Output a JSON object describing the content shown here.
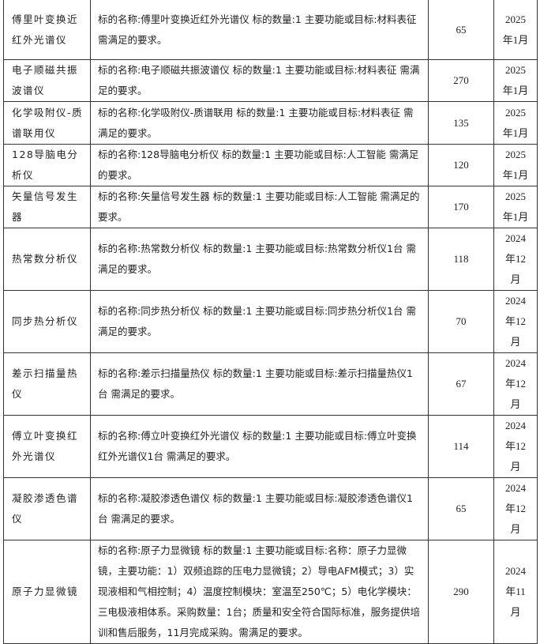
{
  "rows": [
    {
      "name": "傅里叶变换近红外光谱仪",
      "desc": "标的名称:傅里叶变换近红外光谱仪 标的数量:1 主要功能或目标:材料表征 需满足的要求。",
      "qty": "65",
      "date": "2025年1月"
    },
    {
      "name": "电子顺磁共振波谱仪",
      "desc": "标的名称:电子顺磁共振波谱仪 标的数量:1 主要功能或目标:材料表征 需满足的要求。",
      "qty": "270",
      "date": "2025年1月"
    },
    {
      "name": "化学吸附仪-质谱联用仪",
      "desc": "标的名称:化学吸附仪-质谱联用 标的数量:1 主要功能或目标:材料表征 需满足的要求。",
      "qty": "135",
      "date": "2025年1月"
    },
    {
      "name": "128导脑电分析仪",
      "desc": "标的名称:128导脑电分析仪 标的数量:1 主要功能或目标:人工智能 需满足的要求。",
      "qty": "120",
      "date": "2025年1月"
    },
    {
      "name": "矢量信号发生器",
      "desc": "标的名称:矢量信号发生器 标的数量:1 主要功能或目标:人工智能 需满足的要求。",
      "qty": "170",
      "date": "2025年1月"
    },
    {
      "name": "热常数分析仪",
      "desc": "标的名称:热常数分析仪 标的数量:1 主要功能或目标:热常数分析仪1台 需满足的要求。",
      "qty": "118",
      "date": "2024年12月"
    },
    {
      "name": "同步热分析仪",
      "desc": "标的名称:同步热分析仪 标的数量:1 主要功能或目标:同步热分析仪1台 需满足的要求。",
      "qty": "70",
      "date": "2024年12月"
    },
    {
      "name": "差示扫描量热仪",
      "desc": "标的名称:差示扫描量热仪 标的数量:1 主要功能或目标:差示扫描量热仪1台 需满足的要求。",
      "qty": "67",
      "date": "2024年12月"
    },
    {
      "name": "傅立叶变换红外光谱仪",
      "desc": "标的名称:傅立叶变换红外光谱仪 标的数量:1 主要功能或目标:傅立叶变换红外光谱仪1台 需满足的要求。",
      "qty": "114",
      "date": "2024年12月"
    },
    {
      "name": "凝胶渗透色谱仪",
      "desc": "标的名称:凝胶渗透色谱仪 标的数量:1 主要功能或目标:凝胶渗透色谱仪1台 需满足的要求。",
      "qty": "65",
      "date": "2024年12月"
    },
    {
      "name": "原子力显微镜",
      "desc": "标的名称:原子力显微镜 标的数量:1 主要功能或目标:名称：原子力显微镜，主要功能：1）双频追踪的压电力显微镜；2）导电AFM模式；3）实现液相和气相控制；4）温度控制模块：室温至250℃；5）电化学模块：三电极液相体系。采购数量：1台；质量和安全符合国际标准，服务提供培训和售后服务，11月完成采购。需满足的要求。",
      "qty": "290",
      "date": "2024年11月"
    }
  ]
}
